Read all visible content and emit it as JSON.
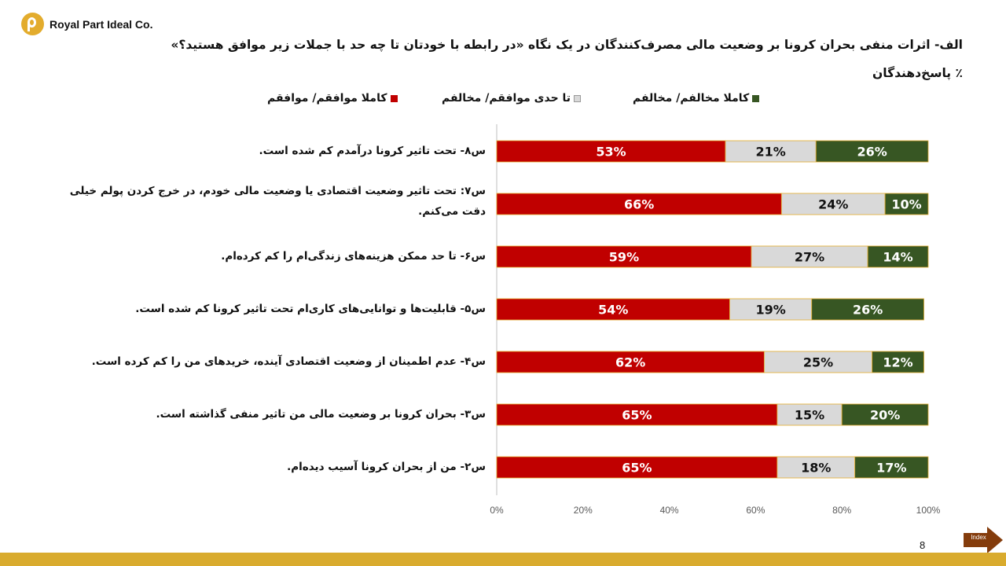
{
  "brand": {
    "name": "Royal Part Ideal Co."
  },
  "title": {
    "line1": "الف- اثرات منفی بحران کرونا بر وضعیت مالی مصرف‌کنندگان در یک نگاه    «در رابطه با خودتان  تا چه حد با جملات زیر موافق هستید؟»",
    "line2": "٪ پاسخ‌دهندگان"
  },
  "colors": {
    "agree": "#c00000",
    "neutral": "#d9d9d9",
    "disagree": "#375623",
    "bar_border": "#e3ac2d",
    "accent": "#d9ab2e"
  },
  "chart_data": {
    "type": "bar",
    "orientation": "horizontal",
    "stacked": true,
    "categories": [
      "س۸- تحت تاثیر کرونا درآمدم کم شده است.",
      "س۷: تحت تاثیر وضعیت اقتصادی یا وضعیت مالی خودم، در خرج کردن پولم خیلی دقت می‌کنم.",
      "س۶- تا حد ممکن هزینه‌های زندگی‌ام را  کم کرده‌ام.",
      "س۵- قابلیت‌ها و توانایی‌های کاری‌ام تحت تاثیر کرونا کم شده است.",
      "س۴- عدم اطمینان از وضعیت اقتصادی آینده، خریدهای من را کم کرده است.",
      "س۳- بحران کرونا بر وضعیت مالی من تاثیر منفی گذاشته است.",
      "س۲- من از بحران کرونا آسیب دیده‌ام."
    ],
    "series": [
      {
        "name": "کاملا موافقم/ موافقم",
        "color": "#c00000",
        "values": [
          53,
          66,
          59,
          54,
          62,
          65,
          65
        ]
      },
      {
        "name": "تا حدی موافقم/ مخالفم",
        "color": "#d9d9d9",
        "values": [
          21,
          24,
          27,
          19,
          25,
          15,
          18
        ]
      },
      {
        "name": "کاملا مخالفم/ مخالفم",
        "color": "#375623",
        "values": [
          26,
          10,
          14,
          26,
          12,
          20,
          17
        ]
      }
    ],
    "xlim": [
      0,
      100
    ],
    "xticks": [
      "0%",
      "20%",
      "40%",
      "60%",
      "80%",
      "100%"
    ],
    "legend_position": "top",
    "grid": false
  },
  "page": {
    "number": "8"
  },
  "nav": {
    "index_label": "Index"
  }
}
